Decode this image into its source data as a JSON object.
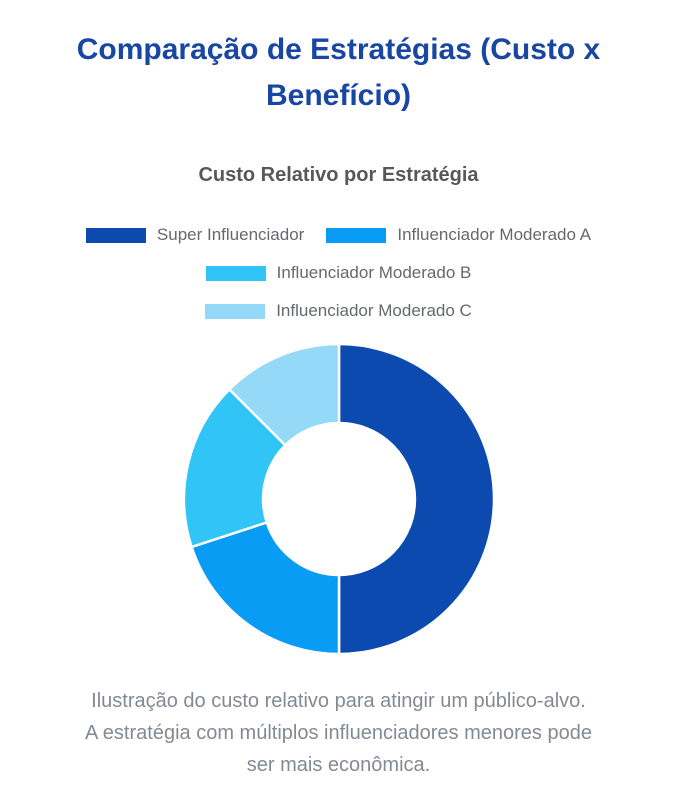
{
  "page": {
    "title": "Comparação de Estratégias (Custo x Benefício)"
  },
  "chart": {
    "subtitle": "Custo Relativo por Estratégia",
    "caption_lines": [
      "Ilustração do custo relativo para atingir um público-alvo.",
      "A estratégia com múltiplos influenciadores menores pode",
      "ser mais econômica."
    ]
  },
  "chart_data": {
    "type": "pie",
    "donut": true,
    "cutout_ratio": 0.49,
    "title": "Custo Relativo por Estratégia",
    "labels": [
      "Super Influenciador",
      "Influenciador Moderado A",
      "Influenciador Moderado B",
      "Influenciador Moderado C"
    ],
    "values": [
      50,
      20,
      17.5,
      12.5
    ],
    "unit": "percent of relative cost",
    "colors": [
      "#0c4ab0",
      "#089cf4",
      "#30c5f6",
      "#95d9f8"
    ],
    "start_angle_deg": 0,
    "direction": "clockwise",
    "legend_position": "top",
    "separator_color": "#ffffff",
    "title_color": "#56585a",
    "page_title_color": "#1746a3",
    "caption_color": "#828a94"
  }
}
